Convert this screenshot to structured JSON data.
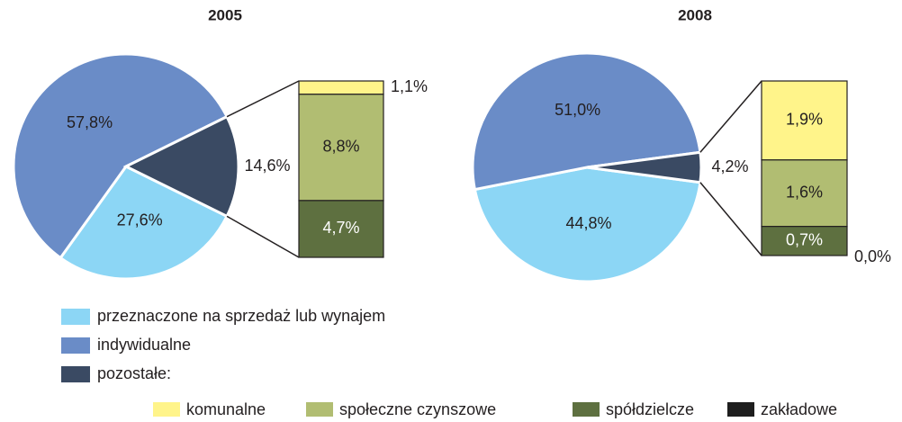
{
  "chart_data": {
    "type": "pie_of_bar",
    "categories": [
      "przeznaczone na sprzedaż lub wynajem",
      "indywidualne",
      "pozostałe:"
    ],
    "colors": [
      "#8cd6f5",
      "#6a8cc7",
      "#3a4a63"
    ],
    "breakdown_categories": [
      "komunalne",
      "społeczne czynszowe",
      "spółdzielcze",
      "zakładowe"
    ],
    "breakdown_colors": [
      "#fff48a",
      "#b1bd72",
      "#5e7040",
      "#1e1e1e"
    ],
    "charts": [
      {
        "title": "2005",
        "values": [
          27.6,
          57.8,
          14.6
        ],
        "value_labels": [
          "27,6%",
          "57,8%",
          "14,6%"
        ],
        "breakdown_values": [
          1.1,
          8.8,
          4.7,
          0.0
        ],
        "breakdown_value_labels": [
          "1,1%",
          "8,8%",
          "4,7%",
          null
        ]
      },
      {
        "title": "2008",
        "values": [
          44.8,
          51.0,
          4.2
        ],
        "value_labels": [
          "44,8%",
          "51,0%",
          "4,2%"
        ],
        "breakdown_values": [
          1.9,
          1.6,
          0.7,
          0.0
        ],
        "breakdown_value_labels": [
          "1,9%",
          "1,6%",
          "0,7%",
          "0,0%"
        ]
      }
    ]
  }
}
